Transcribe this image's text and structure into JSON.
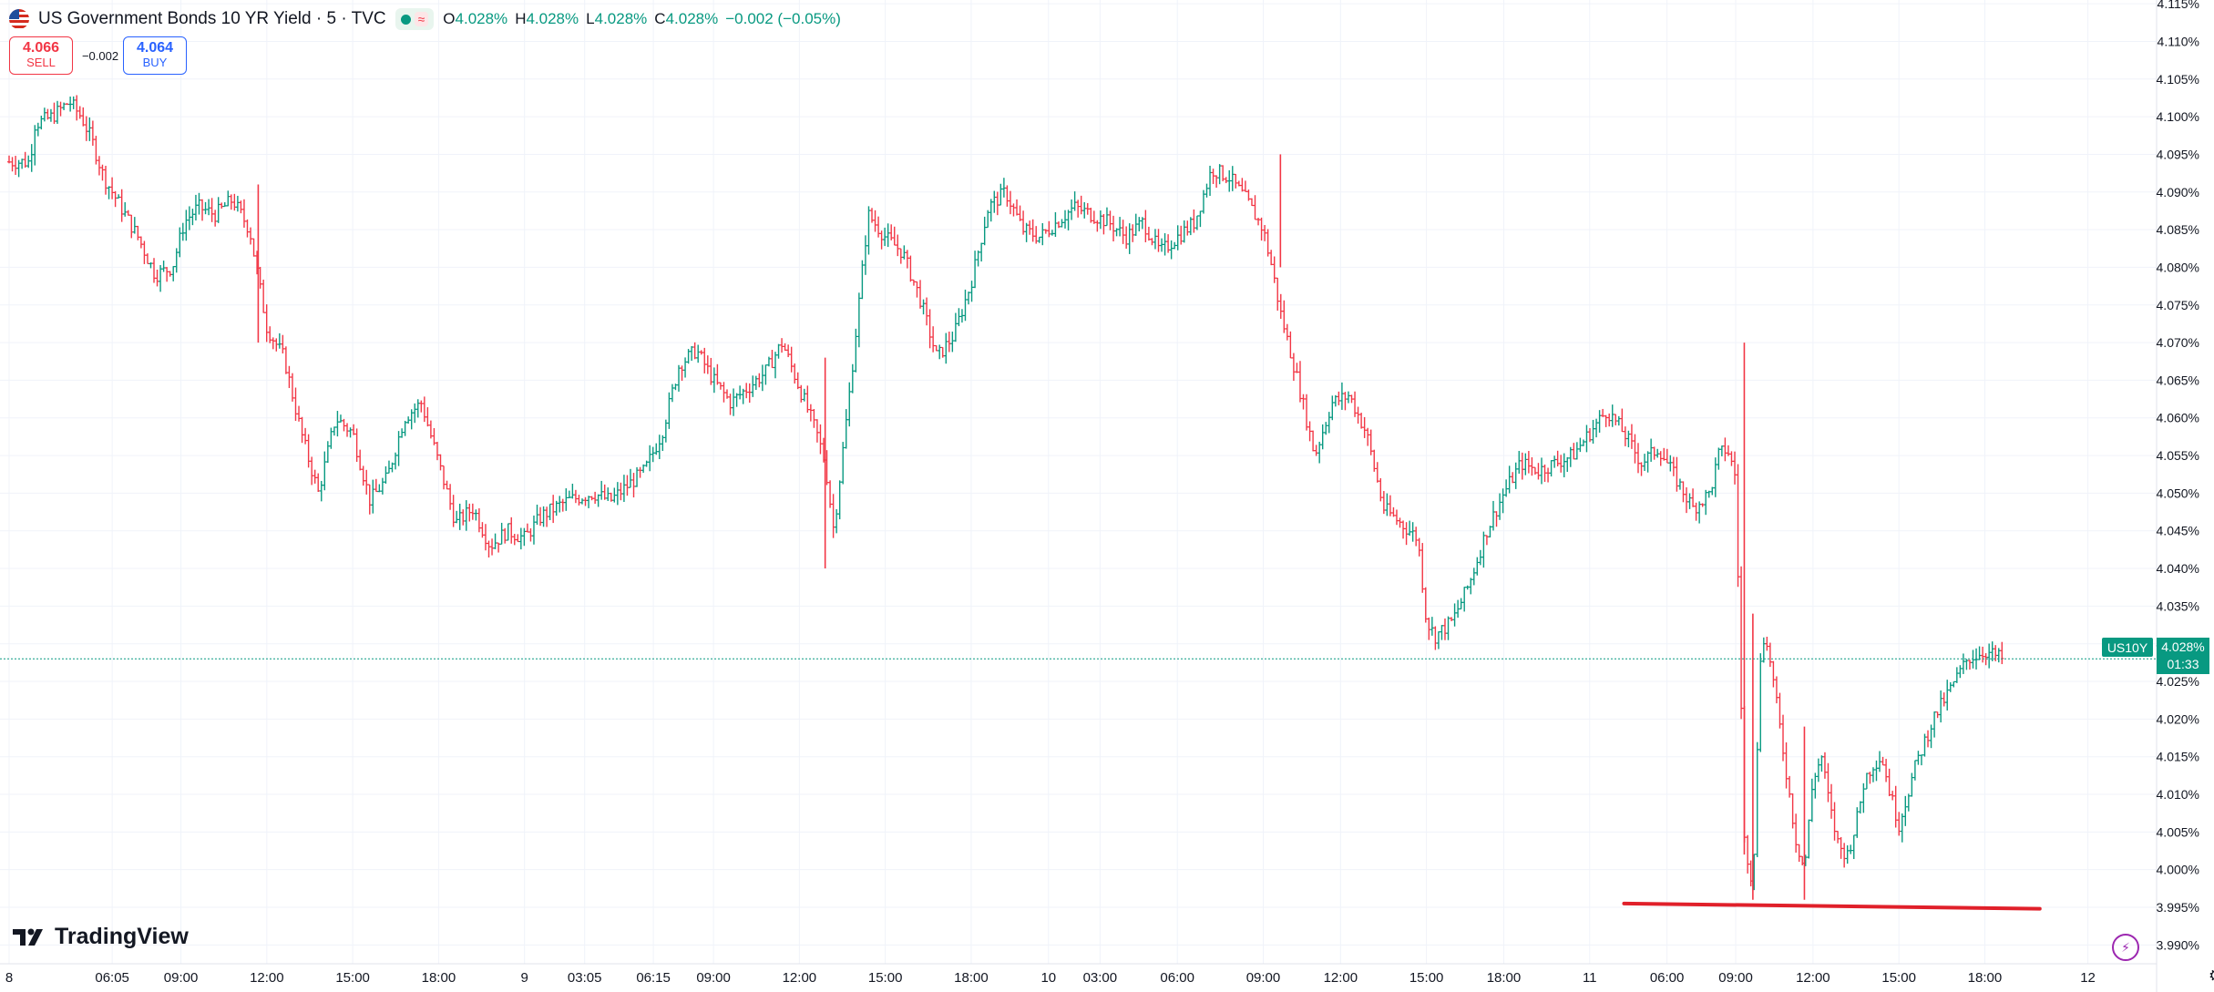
{
  "header": {
    "symbol_title": "US Government Bonds 10 YR Yield · 5 · TVC",
    "ohlc": {
      "o_label": "O",
      "o_value": "4.028%",
      "h_label": "H",
      "h_value": "4.028%",
      "l_label": "L",
      "l_value": "4.028%",
      "c_label": "C",
      "c_value": "4.028%",
      "change": "−0.002 (−0.05%)"
    },
    "wave_icon": "≈"
  },
  "trade": {
    "sell_price": "4.066",
    "sell_label": "SELL",
    "spread": "−0.002",
    "buy_price": "4.064",
    "buy_label": "BUY"
  },
  "branding": {
    "name": "TradingView"
  },
  "price_scale": {
    "symbol_tag": "US10Y",
    "last_price": "4.028%",
    "countdown": "01:33"
  },
  "colors": {
    "up": "#089981",
    "down": "#f23645",
    "grid": "#f0f3fa",
    "drawing": "#e0202a",
    "text": "#131722"
  },
  "icons": [
    "flag-icon",
    "market-open-icon",
    "wave-icon",
    "tradingview-logo-icon",
    "lightning-icon",
    "gear-icon"
  ],
  "chart_data": {
    "type": "ohlc-bar",
    "title": "US Government Bonds 10 YR Yield · 5 · TVC",
    "ylim": [
      3.9875,
      4.1155
    ],
    "y_ticks": [
      "4.115%",
      "4.110%",
      "4.105%",
      "4.100%",
      "4.095%",
      "4.090%",
      "4.085%",
      "4.080%",
      "4.075%",
      "4.070%",
      "4.065%",
      "4.060%",
      "4.055%",
      "4.050%",
      "4.045%",
      "4.040%",
      "4.035%",
      "4.030%",
      "4.025%",
      "4.020%",
      "4.015%",
      "4.010%",
      "4.005%",
      "4.000%",
      "3.995%",
      "3.990%"
    ],
    "x_ticks": [
      {
        "label": "8",
        "x": 0.0
      },
      {
        "label": "06:05",
        "x": 0.6
      },
      {
        "label": "09:00",
        "x": 1.0
      },
      {
        "label": "12:00",
        "x": 1.5
      },
      {
        "label": "15:00",
        "x": 2.0
      },
      {
        "label": "18:00",
        "x": 2.5
      },
      {
        "label": "9",
        "x": 3.0
      },
      {
        "label": "03:05",
        "x": 3.35
      },
      {
        "label": "06:15",
        "x": 3.75
      },
      {
        "label": "09:00",
        "x": 4.1
      },
      {
        "label": "12:00",
        "x": 4.6
      },
      {
        "label": "15:00",
        "x": 5.1
      },
      {
        "label": "18:00",
        "x": 5.6
      },
      {
        "label": "10",
        "x": 6.05
      },
      {
        "label": "03:00",
        "x": 6.35
      },
      {
        "label": "06:00",
        "x": 6.8
      },
      {
        "label": "09:00",
        "x": 7.3
      },
      {
        "label": "12:00",
        "x": 7.75
      },
      {
        "label": "15:00",
        "x": 8.25
      },
      {
        "label": "18:00",
        "x": 8.7
      },
      {
        "label": "11",
        "x": 9.2
      },
      {
        "label": "06:00",
        "x": 9.65
      },
      {
        "label": "09:00",
        "x": 10.05
      },
      {
        "label": "12:00",
        "x": 10.5
      },
      {
        "label": "15:00",
        "x": 11.0
      },
      {
        "label": "18:00",
        "x": 11.5
      },
      {
        "label": "12",
        "x": 12.1
      }
    ],
    "x_range": [
      0,
      12.5
    ],
    "path": [
      [
        0.0,
        4.094
      ],
      [
        0.12,
        4.094
      ],
      [
        0.15,
        4.099
      ],
      [
        0.25,
        4.1
      ],
      [
        0.35,
        4.102
      ],
      [
        0.42,
        4.1
      ],
      [
        0.48,
        4.097
      ],
      [
        0.55,
        4.092
      ],
      [
        0.65,
        4.088
      ],
      [
        0.75,
        4.084
      ],
      [
        0.85,
        4.079
      ],
      [
        0.95,
        4.08
      ],
      [
        1.02,
        4.086
      ],
      [
        1.1,
        4.088
      ],
      [
        1.2,
        4.087
      ],
      [
        1.3,
        4.089
      ],
      [
        1.4,
        4.085
      ],
      [
        1.5,
        4.072
      ],
      [
        1.6,
        4.068
      ],
      [
        1.7,
        4.058
      ],
      [
        1.8,
        4.05
      ],
      [
        1.9,
        4.06
      ],
      [
        2.0,
        4.058
      ],
      [
        2.1,
        4.049
      ],
      [
        2.2,
        4.052
      ],
      [
        2.3,
        4.06
      ],
      [
        2.4,
        4.062
      ],
      [
        2.5,
        4.054
      ],
      [
        2.6,
        4.046
      ],
      [
        2.7,
        4.048
      ],
      [
        2.8,
        4.043
      ],
      [
        2.9,
        4.045
      ],
      [
        3.0,
        4.044
      ],
      [
        3.1,
        4.047
      ],
      [
        3.25,
        4.049
      ],
      [
        3.4,
        4.05
      ],
      [
        3.5,
        4.049
      ],
      [
        3.6,
        4.051
      ],
      [
        3.7,
        4.053
      ],
      [
        3.8,
        4.058
      ],
      [
        3.9,
        4.067
      ],
      [
        4.0,
        4.069
      ],
      [
        4.1,
        4.065
      ],
      [
        4.2,
        4.062
      ],
      [
        4.3,
        4.064
      ],
      [
        4.4,
        4.066
      ],
      [
        4.5,
        4.07
      ],
      [
        4.6,
        4.064
      ],
      [
        4.7,
        4.058
      ],
      [
        4.75,
        4.054
      ],
      [
        4.8,
        4.045
      ],
      [
        4.9,
        4.065
      ],
      [
        5.0,
        4.087
      ],
      [
        5.1,
        4.084
      ],
      [
        5.2,
        4.082
      ],
      [
        5.3,
        4.076
      ],
      [
        5.4,
        4.068
      ],
      [
        5.5,
        4.071
      ],
      [
        5.6,
        4.078
      ],
      [
        5.7,
        4.088
      ],
      [
        5.8,
        4.09
      ],
      [
        5.9,
        4.085
      ],
      [
        6.0,
        4.084
      ],
      [
        6.1,
        4.086
      ],
      [
        6.2,
        4.088
      ],
      [
        6.3,
        4.087
      ],
      [
        6.4,
        4.086
      ],
      [
        6.5,
        4.084
      ],
      [
        6.6,
        4.086
      ],
      [
        6.7,
        4.082
      ],
      [
        6.8,
        4.084
      ],
      [
        6.9,
        4.086
      ],
      [
        7.0,
        4.093
      ],
      [
        7.1,
        4.092
      ],
      [
        7.2,
        4.089
      ],
      [
        7.3,
        4.085
      ],
      [
        7.35,
        4.08
      ],
      [
        7.4,
        4.074
      ],
      [
        7.5,
        4.065
      ],
      [
        7.6,
        4.055
      ],
      [
        7.7,
        4.062
      ],
      [
        7.8,
        4.063
      ],
      [
        7.9,
        4.058
      ],
      [
        8.0,
        4.048
      ],
      [
        8.1,
        4.046
      ],
      [
        8.2,
        4.044
      ],
      [
        8.25,
        4.033
      ],
      [
        8.3,
        4.031
      ],
      [
        8.4,
        4.033
      ],
      [
        8.5,
        4.038
      ],
      [
        8.6,
        4.045
      ],
      [
        8.7,
        4.05
      ],
      [
        8.8,
        4.054
      ],
      [
        8.9,
        4.053
      ],
      [
        9.0,
        4.054
      ],
      [
        9.1,
        4.055
      ],
      [
        9.2,
        4.058
      ],
      [
        9.3,
        4.061
      ],
      [
        9.4,
        4.058
      ],
      [
        9.5,
        4.054
      ],
      [
        9.6,
        4.056
      ],
      [
        9.7,
        4.052
      ],
      [
        9.8,
        4.048
      ],
      [
        9.9,
        4.05
      ],
      [
        9.95,
        4.055
      ],
      [
        10.0,
        4.056
      ],
      [
        10.05,
        4.052
      ],
      [
        10.1,
        4.004
      ],
      [
        10.15,
        3.998
      ],
      [
        10.2,
        4.032
      ],
      [
        10.25,
        4.028
      ],
      [
        10.3,
        4.02
      ],
      [
        10.35,
        4.012
      ],
      [
        10.4,
        4.004
      ],
      [
        10.45,
        4.0
      ],
      [
        10.5,
        4.012
      ],
      [
        10.55,
        4.015
      ],
      [
        10.6,
        4.008
      ],
      [
        10.65,
        4.003
      ],
      [
        10.7,
        4.002
      ],
      [
        10.75,
        4.006
      ],
      [
        10.8,
        4.012
      ],
      [
        10.85,
        4.014
      ],
      [
        10.9,
        4.015
      ],
      [
        10.95,
        4.01
      ],
      [
        11.0,
        4.006
      ],
      [
        11.1,
        4.014
      ],
      [
        11.2,
        4.02
      ],
      [
        11.3,
        4.024
      ],
      [
        11.4,
        4.028
      ],
      [
        11.5,
        4.029
      ],
      [
        11.6,
        4.028
      ]
    ],
    "highlights": [
      {
        "x": 1.45,
        "high": 4.091,
        "low": 4.07
      },
      {
        "x": 4.75,
        "high": 4.068,
        "low": 4.04
      },
      {
        "x": 10.1,
        "high": 4.07,
        "low": 4.002
      },
      {
        "x": 10.15,
        "high": 4.034,
        "low": 3.996
      },
      {
        "x": 10.45,
        "high": 4.019,
        "low": 3.996
      },
      {
        "x": 7.4,
        "high": 4.095,
        "low": 4.08
      }
    ],
    "last_value": 4.028,
    "trend_line": {
      "x1": 9.4,
      "y1": 3.9955,
      "x2": 11.82,
      "y2": 3.9948
    }
  }
}
